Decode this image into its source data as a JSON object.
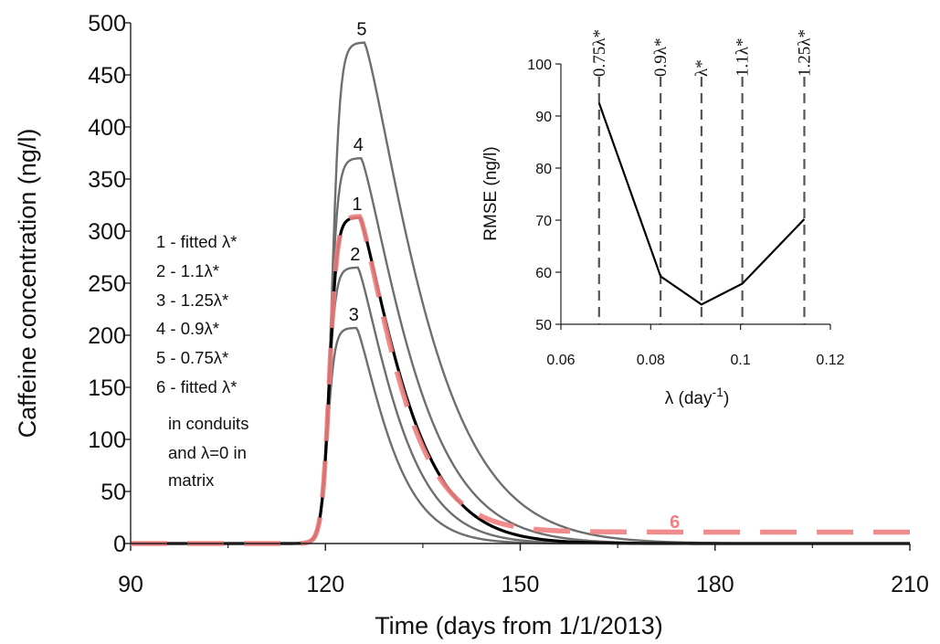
{
  "chart_data": [
    {
      "type": "line",
      "xlabel": "Time (days from 1/1/2013)",
      "ylabel": "Caffeine concentration (ng/l)",
      "xlim": [
        90,
        210
      ],
      "ylim": [
        0,
        500
      ],
      "x_ticks": [
        "90",
        "120",
        "150",
        "180",
        "210"
      ],
      "y_ticks": [
        "0",
        "50",
        "100",
        "150",
        "200",
        "250",
        "300",
        "350",
        "400",
        "450",
        "500"
      ],
      "grid": false,
      "legend_placement": "left",
      "legend": [
        "1 - fitted λ*",
        "2 - 1.1λ*",
        "3 - 1.25λ*",
        "4 - 0.9λ*",
        "5 - 0.75λ*",
        "6 - fitted λ*",
        "in conduits",
        "and λ=0 in",
        "matrix"
      ],
      "colors": {
        "fitted": "#000000",
        "scenario": "#6e6e6e",
        "dashed": "#f08080"
      },
      "series": [
        {
          "name": "1",
          "label": "1",
          "color": "#000000",
          "peak_x": 125.3,
          "peak": 313,
          "rise_width": 4.7,
          "tail": 8.6,
          "x": [
            90,
            110,
            115,
            120,
            125,
            130,
            135,
            140,
            145,
            150,
            160,
            170,
            180,
            190,
            200,
            210
          ],
          "y": [
            0,
            0,
            3,
            175,
            313,
            270,
            175,
            100,
            55,
            30,
            9,
            3,
            1,
            0,
            0,
            0
          ]
        },
        {
          "name": "2",
          "label": "2",
          "color": "#6e6e6e",
          "peak_x": 125,
          "peak": 265,
          "rise_width": 4.6,
          "tail": 7.6,
          "x": [
            90,
            110,
            115,
            120,
            125,
            130,
            135,
            140,
            145,
            150,
            160,
            170,
            180,
            190,
            200,
            210
          ],
          "y": [
            0,
            0,
            3,
            150,
            265,
            220,
            135,
            72,
            37,
            19,
            5,
            1,
            0,
            0,
            0,
            0
          ]
        },
        {
          "name": "3",
          "label": "3",
          "color": "#6e6e6e",
          "peak_x": 124.8,
          "peak": 207,
          "rise_width": 4.5,
          "tail": 6.5,
          "x": [
            90,
            110,
            115,
            120,
            125,
            130,
            135,
            140,
            145,
            150,
            160,
            170,
            180,
            190,
            200,
            210
          ],
          "y": [
            0,
            0,
            3,
            120,
            207,
            165,
            92,
            44,
            20,
            9,
            2,
            0,
            0,
            0,
            0,
            0
          ]
        },
        {
          "name": "4",
          "label": "4",
          "color": "#6e6e6e",
          "peak_x": 125.5,
          "peak": 370,
          "rise_width": 4.8,
          "tail": 9.8,
          "x": [
            90,
            110,
            115,
            120,
            125,
            130,
            135,
            140,
            145,
            150,
            160,
            170,
            180,
            190,
            200,
            210
          ],
          "y": [
            0,
            0,
            3,
            200,
            368,
            330,
            230,
            140,
            82,
            48,
            16,
            6,
            2,
            1,
            0,
            0
          ]
        },
        {
          "name": "5",
          "label": "5",
          "color": "#6e6e6e",
          "peak_x": 126,
          "peak": 481,
          "rise_width": 5.0,
          "tail": 11.5,
          "x": [
            90,
            110,
            115,
            120,
            125,
            130,
            135,
            140,
            145,
            150,
            160,
            170,
            180,
            190,
            200,
            210
          ],
          "y": [
            0,
            0,
            3,
            245,
            472,
            455,
            340,
            225,
            142,
            90,
            37,
            15,
            6,
            2,
            1,
            0
          ]
        },
        {
          "name": "6",
          "label": "6",
          "color": "#f08080",
          "dashed": true,
          "peak_x": 125.3,
          "peak": 314,
          "rise_width": 4.7,
          "tail": 7.8,
          "plateau": 11,
          "x": [
            90,
            110,
            115,
            120,
            125,
            130,
            135,
            140,
            145,
            150,
            160,
            170,
            180,
            190,
            200,
            210
          ],
          "y": [
            0,
            0,
            3,
            175,
            314,
            265,
            165,
            95,
            55,
            35,
            18,
            14,
            12,
            11,
            11,
            11
          ]
        }
      ]
    },
    {
      "type": "line",
      "xlabel": "λ (day-1)",
      "xlabel_main": "λ (day",
      "xlabel_sup": "-1",
      "xlabel_close": ")",
      "ylabel": "RMSE (ng/l)",
      "xlim": [
        0.06,
        0.12
      ],
      "ylim": [
        50,
        100
      ],
      "x_ticks": [
        "0.06",
        "0.08",
        "0.1",
        "0.12"
      ],
      "y_ticks": [
        "50",
        "60",
        "70",
        "80",
        "90",
        "100"
      ],
      "grid": false,
      "series": [
        {
          "color": "#000000",
          "x": [
            0.0685,
            0.0822,
            0.0913,
            0.1004,
            0.1142
          ],
          "y": [
            92.5,
            59.2,
            53.8,
            57.8,
            70.2
          ]
        }
      ],
      "reference_lines": [
        {
          "x": 0.0685,
          "label": "0.75λ*"
        },
        {
          "x": 0.0822,
          "label": "0.9λ*"
        },
        {
          "x": 0.0913,
          "label": "λ*"
        },
        {
          "x": 0.1004,
          "label": "1.1λ*"
        },
        {
          "x": 0.1142,
          "label": "1.25λ*"
        }
      ]
    }
  ]
}
